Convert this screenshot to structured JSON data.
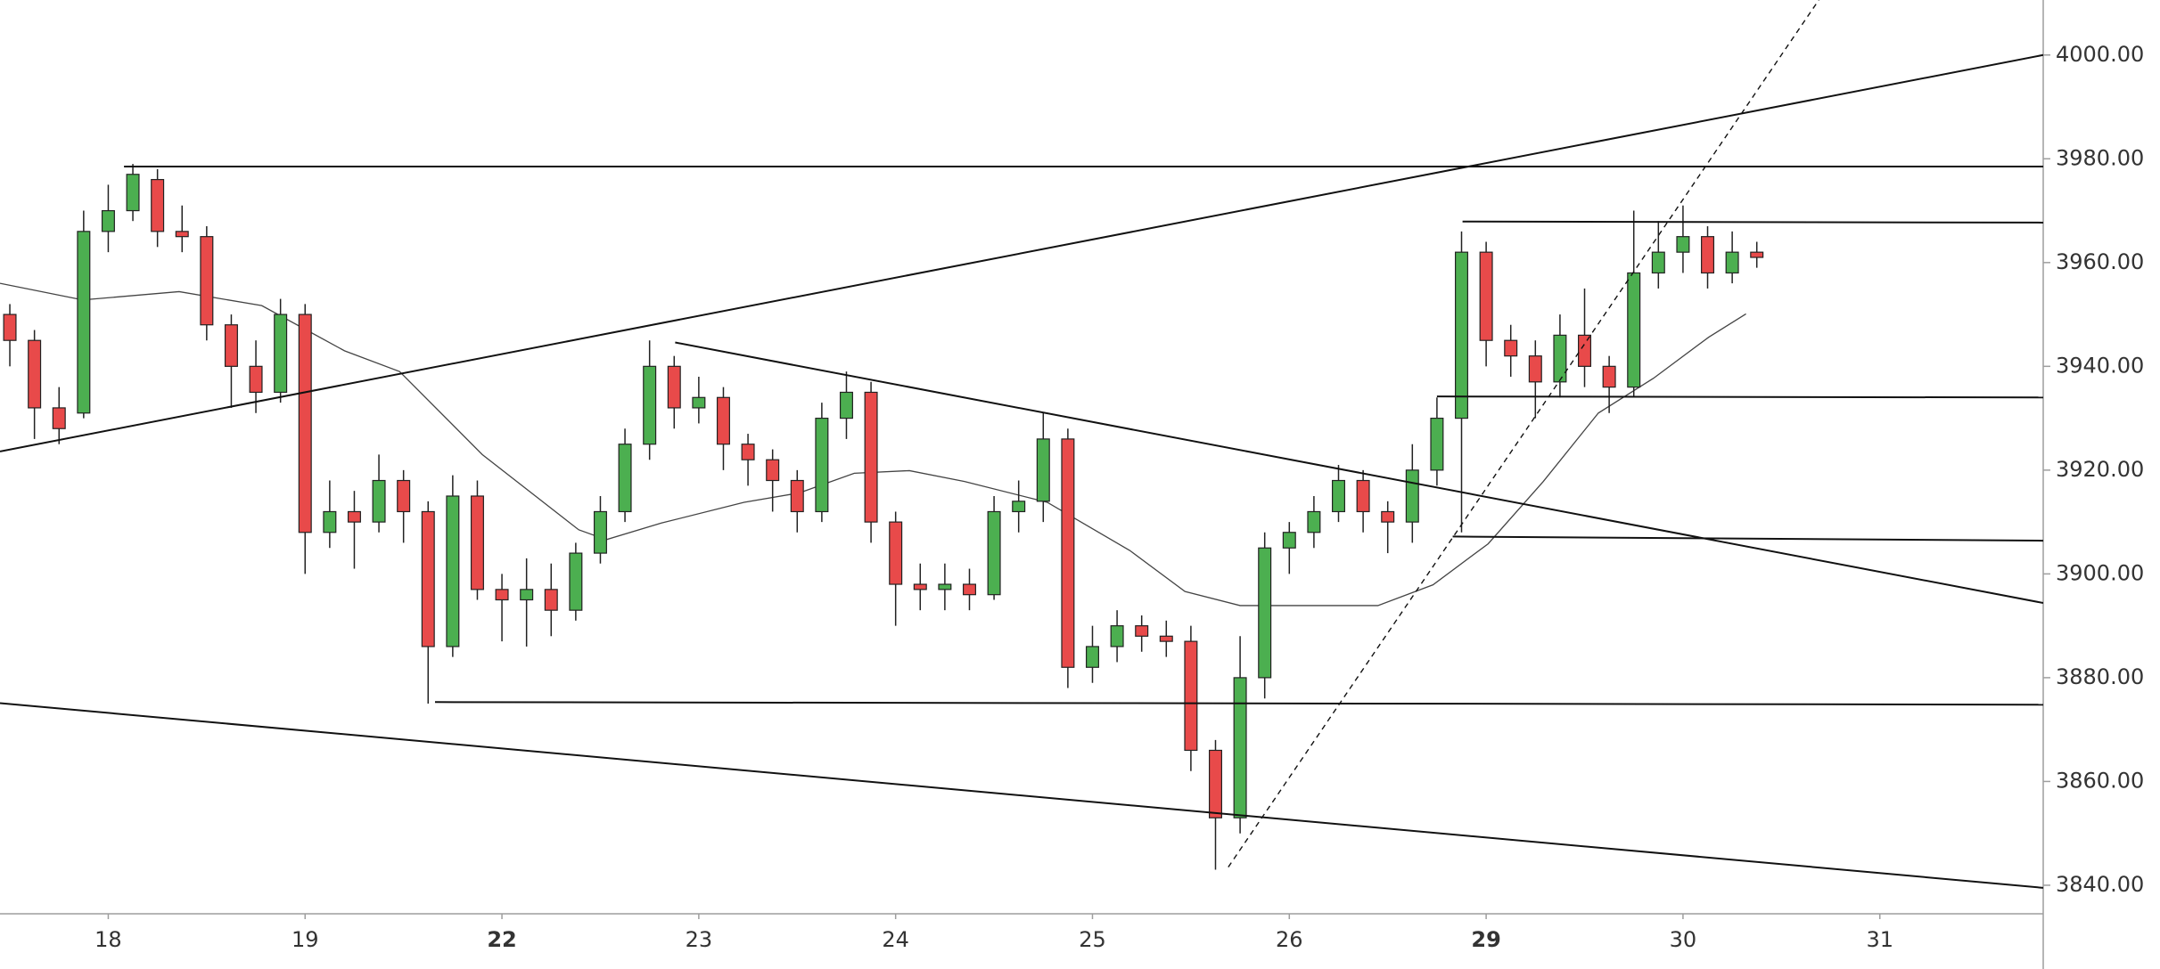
{
  "chart_data": {
    "type": "candlestick",
    "xlim": [
      -0.55,
      9.83
    ],
    "ylim": [
      3834.5,
      4010.6
    ],
    "xticks": [
      {
        "value": 0,
        "label": "18"
      },
      {
        "value": 1,
        "label": "19"
      },
      {
        "value": 2,
        "label": "22",
        "bold": true
      },
      {
        "value": 3,
        "label": "23"
      },
      {
        "value": 4,
        "label": "24"
      },
      {
        "value": 5,
        "label": "25"
      },
      {
        "value": 6,
        "label": "26"
      },
      {
        "value": 7,
        "label": "29",
        "bold": true
      },
      {
        "value": 8,
        "label": "30"
      },
      {
        "value": 9,
        "label": "31"
      }
    ],
    "yticks": [
      {
        "value": 3840,
        "label": "3840.00"
      },
      {
        "value": 3860,
        "label": "3860.00"
      },
      {
        "value": 3880,
        "label": "3880.00"
      },
      {
        "value": 3900,
        "label": "3900.00"
      },
      {
        "value": 3920,
        "label": "3920.00"
      },
      {
        "value": 3940,
        "label": "3940.00"
      },
      {
        "value": 3960,
        "label": "3960.00"
      },
      {
        "value": 3980,
        "label": "3980.00"
      },
      {
        "value": 4000,
        "label": "4000.00"
      }
    ],
    "up_color": "#4caf50",
    "down_color": "#e84a4a",
    "x": [
      -0.5,
      -0.375,
      -0.25,
      -0.125,
      0,
      0.125,
      0.25,
      0.375,
      0.5,
      0.625,
      0.75,
      0.875,
      1,
      1.125,
      1.25,
      1.375,
      1.5,
      1.625,
      1.75,
      1.875,
      2,
      2.125,
      2.25,
      2.375,
      2.5,
      2.625,
      2.75,
      2.875,
      3,
      3.125,
      3.25,
      3.375,
      3.5,
      3.625,
      3.75,
      3.875,
      4,
      4.125,
      4.25,
      4.375,
      4.5,
      4.625,
      4.75,
      4.875,
      5,
      5.125,
      5.25,
      5.375,
      5.5,
      5.625,
      5.75,
      5.875,
      6,
      6.125,
      6.25,
      6.375,
      6.5,
      6.625,
      6.75,
      6.875,
      7,
      7.125,
      7.25,
      7.375,
      7.5,
      7.625,
      7.75,
      7.875,
      8,
      8.125,
      8.25,
      8.375
    ],
    "open": [
      3950,
      3945,
      3932,
      3931,
      3966,
      3970,
      3976,
      3966,
      3965,
      3948,
      3940,
      3935,
      3950,
      3908,
      3912,
      3910,
      3918,
      3912,
      3886,
      3915,
      3897,
      3895,
      3897,
      3893,
      3904,
      3912,
      3925,
      3940,
      3932,
      3934,
      3925,
      3922,
      3918,
      3912,
      3930,
      3935,
      3910,
      3898,
      3897,
      3898,
      3896,
      3912,
      3914,
      3926,
      3882,
      3886,
      3890,
      3888,
      3887,
      3866,
      3853,
      3880,
      3905,
      3908,
      3912,
      3918,
      3912,
      3910,
      3920,
      3930,
      3962,
      3945,
      3942,
      3937,
      3946,
      3940,
      3936,
      3958,
      3962,
      3965,
      3958,
      3962
    ],
    "high": [
      3952,
      3947,
      3936,
      3970,
      3975,
      3979,
      3978,
      3971,
      3967,
      3950,
      3945,
      3953,
      3952,
      3918,
      3916,
      3923,
      3920,
      3914,
      3919,
      3918,
      3900,
      3903,
      3902,
      3906,
      3915,
      3928,
      3945,
      3942,
      3938,
      3936,
      3927,
      3924,
      3920,
      3933,
      3939,
      3937,
      3912,
      3902,
      3902,
      3901,
      3915,
      3918,
      3931,
      3928,
      3890,
      3893,
      3892,
      3891,
      3890,
      3868,
      3888,
      3908,
      3910,
      3915,
      3921,
      3920,
      3914,
      3925,
      3934,
      3966,
      3964,
      3948,
      3945,
      3950,
      3955,
      3942,
      3970,
      3968,
      3971,
      3967,
      3966,
      3964
    ],
    "low": [
      3940,
      3926,
      3925,
      3930,
      3962,
      3968,
      3963,
      3962,
      3945,
      3932,
      3931,
      3933,
      3900,
      3905,
      3901,
      3908,
      3906,
      3875,
      3884,
      3895,
      3887,
      3886,
      3888,
      3891,
      3902,
      3910,
      3922,
      3928,
      3929,
      3920,
      3917,
      3912,
      3908,
      3910,
      3926,
      3906,
      3890,
      3893,
      3893,
      3893,
      3895,
      3908,
      3910,
      3878,
      3879,
      3883,
      3885,
      3884,
      3862,
      3843,
      3850,
      3876,
      3900,
      3905,
      3910,
      3908,
      3904,
      3906,
      3917,
      3908,
      3940,
      3938,
      3930,
      3934,
      3936,
      3931,
      3934,
      3955,
      3958,
      3955,
      3956,
      3959
    ],
    "close": [
      3945,
      3932,
      3928,
      3966,
      3970,
      3977,
      3966,
      3965,
      3948,
      3940,
      3935,
      3950,
      3908,
      3912,
      3910,
      3918,
      3912,
      3886,
      3915,
      3897,
      3895,
      3897,
      3893,
      3904,
      3912,
      3925,
      3940,
      3932,
      3934,
      3925,
      3922,
      3918,
      3912,
      3930,
      3935,
      3910,
      3898,
      3897,
      3898,
      3896,
      3912,
      3914,
      3926,
      3882,
      3886,
      3890,
      3888,
      3887,
      3866,
      3853,
      3880,
      3905,
      3908,
      3912,
      3918,
      3912,
      3910,
      3920,
      3930,
      3962,
      3945,
      3942,
      3937,
      3946,
      3940,
      3936,
      3958,
      3962,
      3965,
      3958,
      3962,
      3961
    ],
    "ma": {
      "color": "#444444",
      "x": [
        -0.55,
        -0.13,
        0.36,
        0.78,
        1.2,
        1.48,
        1.9,
        2.39,
        2.53,
        2.81,
        3.23,
        3.51,
        3.79,
        4.07,
        4.35,
        4.77,
        5.19,
        5.47,
        5.75,
        6.17,
        6.45,
        6.73,
        7.01,
        7.29,
        7.57,
        7.85,
        8.13,
        8.32
      ],
      "values": [
        3956,
        3952.8,
        3954.4,
        3951.7,
        3943,
        3939,
        3923,
        3908.5,
        3906.6,
        3909.8,
        3913.8,
        3915.6,
        3919.4,
        3919.9,
        3917.8,
        3913.8,
        3904.5,
        3896.6,
        3893.9,
        3893.9,
        3893.9,
        3897.9,
        3905.8,
        3917.8,
        3931,
        3937.7,
        3945.6,
        3950.1
      ]
    },
    "drawings": [
      {
        "x": [
          -0.55,
          9.83
        ],
        "y": [
          3923.6,
          4000
        ],
        "dashed": false
      },
      {
        "x": [
          0.08,
          9.83
        ],
        "y": [
          3978.5,
          3978.5
        ],
        "dashed": false
      },
      {
        "x": [
          6.88,
          9.83
        ],
        "y": [
          3967.9,
          3967.7
        ],
        "dashed": false
      },
      {
        "x": [
          6.75,
          9.83
        ],
        "y": [
          3934.2,
          3934.0
        ],
        "dashed": false
      },
      {
        "x": [
          6.83,
          9.83
        ],
        "y": [
          3907.2,
          3906.4
        ],
        "dashed": false
      },
      {
        "x": [
          1.66,
          9.83
        ],
        "y": [
          3875.3,
          3874.8
        ],
        "dashed": false
      },
      {
        "x": [
          2.88,
          9.83
        ],
        "y": [
          3944.6,
          3894.4
        ],
        "dashed": false
      },
      {
        "x": [
          -0.55,
          9.83
        ],
        "y": [
          3875.1,
          3839.5
        ],
        "dashed": false
      },
      {
        "x": [
          5.69,
          8.69
        ],
        "y": [
          3843.5,
          4010.6
        ],
        "dashed": true
      }
    ]
  }
}
